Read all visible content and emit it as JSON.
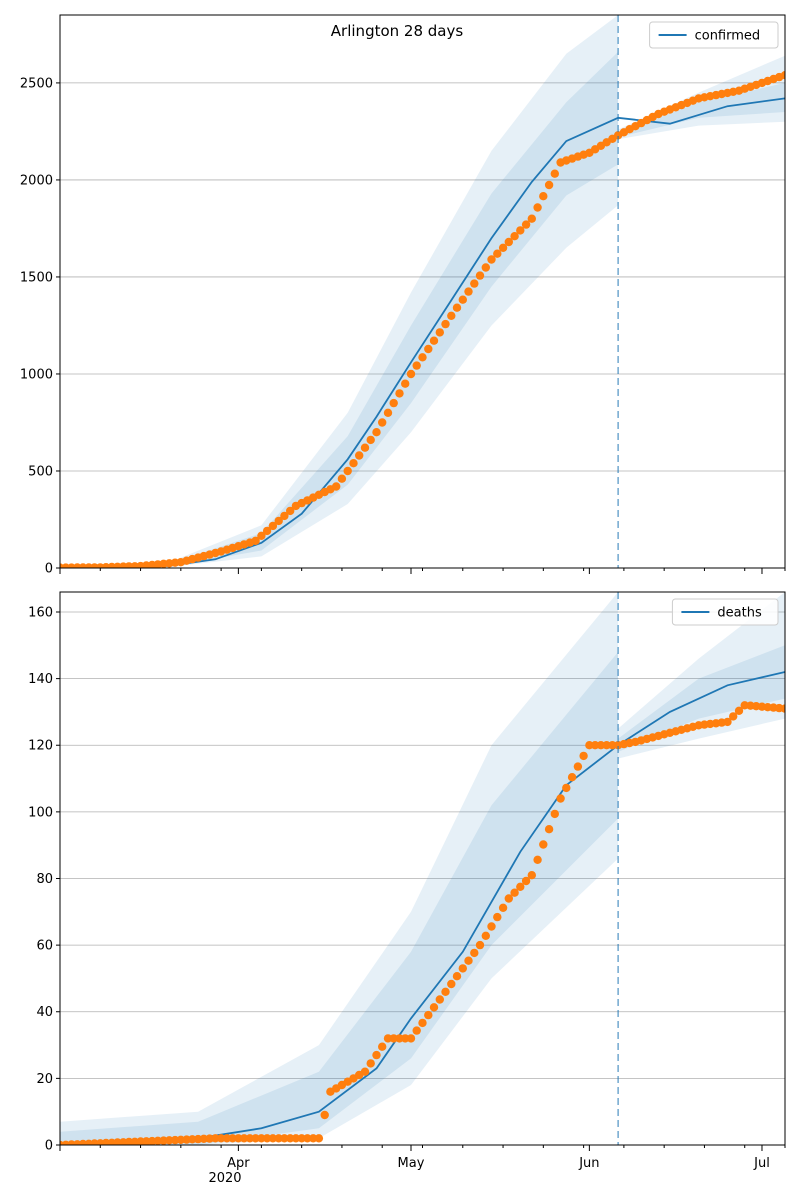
{
  "figure": {
    "title": "Arlington 28 days",
    "x_tick_labels": [
      "Apr",
      "May",
      "Jun",
      "Jul"
    ],
    "x_year_label": "2020",
    "colors": {
      "model": "#1f77b4",
      "observed": "#ff7f0e",
      "grid": "#b0b0b0"
    }
  },
  "chart_data": [
    {
      "type": "line",
      "title": "Arlington 28 days",
      "legend": [
        "confirmed"
      ],
      "legend_placement": "top-right",
      "grid": "horizontal",
      "xlim": [
        "2020-03-01",
        "2020-07-05"
      ],
      "ylim": [
        0,
        2850
      ],
      "y_ticks": [
        0,
        500,
        1000,
        1500,
        2000,
        2500
      ],
      "forecast_start": "2020-06-06",
      "series": [
        {
          "name": "confirmed",
          "kind": "model_median",
          "x": [
            "2020-03-01",
            "2020-03-10",
            "2020-03-20",
            "2020-03-28",
            "2020-04-05",
            "2020-04-12",
            "2020-04-20",
            "2020-04-25",
            "2020-05-01",
            "2020-05-08",
            "2020-05-15",
            "2020-05-22",
            "2020-05-28",
            "2020-06-06",
            "2020-06-15",
            "2020-06-25",
            "2020-07-05"
          ],
          "values": [
            2,
            4,
            12,
            45,
            130,
            280,
            560,
            780,
            1060,
            1380,
            1700,
            1990,
            2200,
            2320,
            2290,
            2380,
            2420
          ]
        },
        {
          "kind": "observed",
          "x": [
            "2020-03-01",
            "2020-03-08",
            "2020-03-15",
            "2020-03-22",
            "2020-03-29",
            "2020-04-04",
            "2020-04-11",
            "2020-04-18",
            "2020-04-25",
            "2020-05-01",
            "2020-05-08",
            "2020-05-15",
            "2020-05-22",
            "2020-05-27",
            "2020-06-01",
            "2020-06-06",
            "2020-06-13",
            "2020-06-20",
            "2020-06-27",
            "2020-07-05"
          ],
          "values": [
            2,
            3,
            10,
            30,
            85,
            140,
            320,
            420,
            700,
            1000,
            1300,
            1590,
            1800,
            2090,
            2140,
            2230,
            2340,
            2420,
            2460,
            2540
          ]
        }
      ],
      "bands": [
        {
          "x": [
            "2020-03-01",
            "2020-03-20",
            "2020-04-05",
            "2020-04-20",
            "2020-05-01",
            "2020-05-15",
            "2020-05-28",
            "2020-06-06"
          ],
          "upper": [
            8,
            30,
            220,
            800,
            1420,
            2150,
            2650,
            2850
          ],
          "lower": [
            0,
            5,
            60,
            330,
            700,
            1250,
            1650,
            1870
          ]
        },
        {
          "x": [
            "2020-03-01",
            "2020-03-20",
            "2020-04-05",
            "2020-04-20",
            "2020-05-01",
            "2020-05-15",
            "2020-05-28",
            "2020-06-06"
          ],
          "upper": [
            5,
            22,
            180,
            680,
            1250,
            1930,
            2400,
            2660
          ],
          "lower": [
            0,
            7,
            90,
            430,
            850,
            1450,
            1920,
            2080
          ]
        },
        {
          "x": [
            "2020-06-06",
            "2020-06-20",
            "2020-07-05"
          ],
          "upper": [
            2260,
            2450,
            2640
          ],
          "lower": [
            2210,
            2280,
            2300
          ]
        },
        {
          "x": [
            "2020-06-06",
            "2020-06-20",
            "2020-07-05"
          ],
          "upper": [
            2240,
            2400,
            2500
          ],
          "lower": [
            2220,
            2320,
            2350
          ]
        }
      ]
    },
    {
      "type": "line",
      "legend": [
        "deaths"
      ],
      "legend_placement": "top-right",
      "grid": "horizontal",
      "xlim": [
        "2020-03-01",
        "2020-07-05"
      ],
      "ylim": [
        0,
        166
      ],
      "y_ticks": [
        0,
        20,
        40,
        60,
        80,
        100,
        120,
        140,
        160
      ],
      "forecast_start": "2020-06-06",
      "series": [
        {
          "name": "deaths",
          "kind": "model_median",
          "x": [
            "2020-03-01",
            "2020-03-15",
            "2020-03-25",
            "2020-04-05",
            "2020-04-15",
            "2020-04-25",
            "2020-05-01",
            "2020-05-10",
            "2020-05-20",
            "2020-05-28",
            "2020-06-06",
            "2020-06-15",
            "2020-06-25",
            "2020-07-05"
          ],
          "values": [
            0.5,
            1,
            2,
            5,
            10,
            23,
            38,
            58,
            88,
            108,
            120,
            130,
            138,
            142
          ]
        },
        {
          "kind": "observed",
          "x": [
            "2020-03-01",
            "2020-03-28",
            "2020-04-15",
            "2020-04-17",
            "2020-04-23",
            "2020-04-27",
            "2020-05-01",
            "2020-05-07",
            "2020-05-13",
            "2020-05-18",
            "2020-05-22",
            "2020-05-27",
            "2020-06-01",
            "2020-06-06",
            "2020-06-09",
            "2020-06-20",
            "2020-06-25",
            "2020-06-28",
            "2020-07-05"
          ],
          "values": [
            0,
            2,
            2,
            16,
            22,
            32,
            32,
            46,
            60,
            74,
            81,
            104,
            120,
            120,
            121,
            126,
            127,
            132,
            131
          ]
        }
      ],
      "bands": [
        {
          "x": [
            "2020-03-01",
            "2020-03-25",
            "2020-04-15",
            "2020-05-01",
            "2020-05-15",
            "2020-06-06"
          ],
          "upper": [
            7,
            10,
            30,
            70,
            120,
            166
          ],
          "lower": [
            0,
            0,
            2,
            18,
            50,
            86
          ]
        },
        {
          "x": [
            "2020-03-01",
            "2020-03-25",
            "2020-04-15",
            "2020-05-01",
            "2020-05-15",
            "2020-06-06"
          ],
          "upper": [
            4,
            7,
            22,
            58,
            102,
            148
          ],
          "lower": [
            0,
            0,
            5,
            26,
            60,
            98
          ]
        },
        {
          "x": [
            "2020-06-06",
            "2020-06-20",
            "2020-07-05"
          ],
          "upper": [
            125,
            146,
            166
          ],
          "lower": [
            116,
            122,
            128
          ]
        },
        {
          "x": [
            "2020-06-06",
            "2020-06-20",
            "2020-07-05"
          ],
          "upper": [
            122,
            140,
            150
          ],
          "lower": [
            118,
            128,
            134
          ]
        }
      ]
    }
  ]
}
